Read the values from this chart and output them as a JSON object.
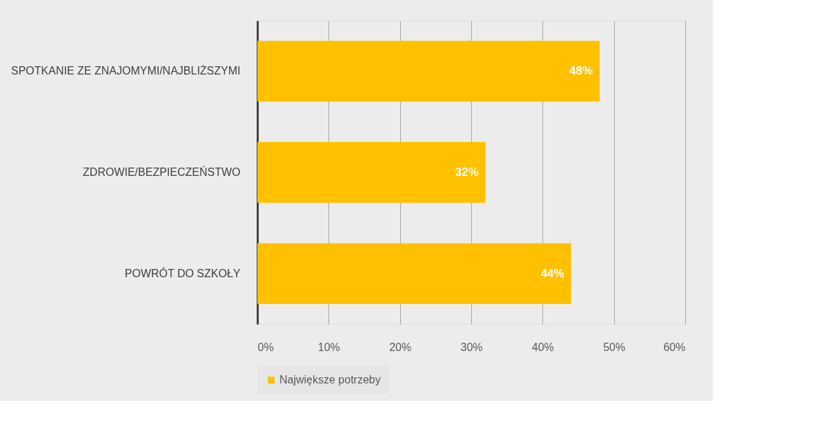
{
  "chart_data": {
    "type": "bar",
    "orientation": "horizontal",
    "categories": [
      "SPOTKANIE ZE ZNAJOMYMI/NAJBLIŻSZYMI",
      "ZDROWIE/BEZPIECZEŃSTWO",
      "POWRÓT DO SZKOŁY"
    ],
    "series": [
      {
        "name": "Największe potrzeby",
        "color": "#ffc000",
        "values": [
          48,
          32,
          44
        ],
        "value_labels": [
          "48%",
          "32%",
          "44%"
        ]
      }
    ],
    "xlim": [
      0,
      60
    ],
    "xticks": [
      {
        "value": 0,
        "label": "0%"
      },
      {
        "value": 10,
        "label": "10%"
      },
      {
        "value": 20,
        "label": "20%"
      },
      {
        "value": 30,
        "label": "30%"
      },
      {
        "value": 40,
        "label": "40%"
      },
      {
        "value": 50,
        "label": "50%"
      },
      {
        "value": 60,
        "label": "60%"
      }
    ],
    "grid": "x",
    "legend": "bottom"
  }
}
